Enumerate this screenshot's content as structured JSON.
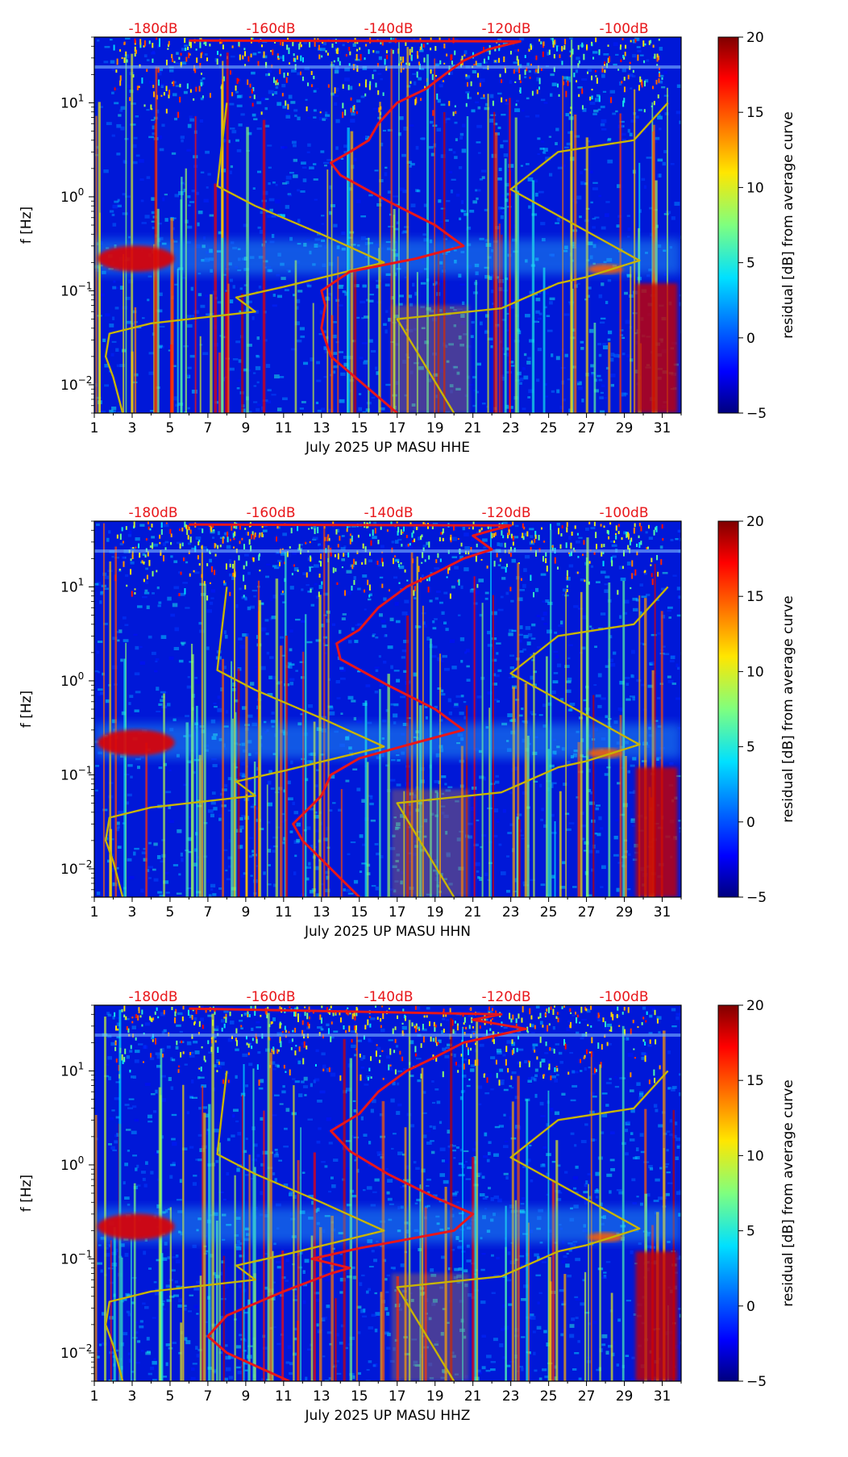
{
  "chart_data": [
    {
      "type": "heatmap",
      "xlabel": "July 2025 UP MASU  HHE",
      "ylabel": "f [Hz]",
      "x_ticks": [
        "1",
        "3",
        "5",
        "7",
        "9",
        "11",
        "13",
        "15",
        "17",
        "19",
        "21",
        "23",
        "25",
        "27",
        "29",
        "31"
      ],
      "x_range": [
        1,
        32
      ],
      "y_scale": "log",
      "y_range": [
        0.005,
        50
      ],
      "y_ticks": [
        {
          "base": "10",
          "exp": "−2"
        },
        {
          "base": "10",
          "exp": "−1"
        },
        {
          "base": "10",
          "exp": "0"
        },
        {
          "base": "10",
          "exp": "1"
        }
      ],
      "top_ticks": [
        "-180dB",
        "-160dB",
        "-140dB",
        "-120dB",
        "-100dB"
      ],
      "colorbar": {
        "label": "residual [dB] from average curve",
        "range": [
          -5,
          20
        ],
        "ticks": [
          "−5",
          "0",
          "5",
          "10",
          "15",
          "20"
        ]
      },
      "curves": [
        {
          "name": "noise-model-low",
          "color": "#c8b400",
          "points": [
            [
              2.5,
              0.005
            ],
            [
              2.0,
              0.012
            ],
            [
              1.6,
              0.02
            ],
            [
              1.8,
              0.035
            ],
            [
              4.0,
              0.045
            ],
            [
              9.5,
              0.06
            ],
            [
              8.5,
              0.085
            ],
            [
              11.0,
              0.11
            ],
            [
              16.3,
              0.2
            ],
            [
              13.0,
              0.4
            ],
            [
              9.5,
              0.8
            ],
            [
              7.5,
              1.3
            ],
            [
              7.7,
              3
            ],
            [
              8.0,
              10
            ]
          ]
        },
        {
          "name": "noise-model-high",
          "color": "#c8b400",
          "points": [
            [
              20.0,
              0.005
            ],
            [
              17.0,
              0.05
            ],
            [
              22.5,
              0.065
            ],
            [
              25.5,
              0.12
            ],
            [
              27.0,
              0.14
            ],
            [
              29.8,
              0.21
            ],
            [
              23.0,
              1.2
            ],
            [
              25.5,
              3
            ],
            [
              29.5,
              4
            ],
            [
              31.3,
              10
            ]
          ]
        },
        {
          "name": "median-psd",
          "color": "#e8161a",
          "points": [
            [
              17.0,
              0.005
            ],
            [
              13.5,
              0.02
            ],
            [
              13.0,
              0.04
            ],
            [
              13.2,
              0.07
            ],
            [
              13.0,
              0.1
            ],
            [
              14.5,
              0.16
            ],
            [
              18.0,
              0.22
            ],
            [
              20.5,
              0.3
            ],
            [
              19.0,
              0.5
            ],
            [
              16.5,
              0.9
            ],
            [
              14.0,
              1.7
            ],
            [
              13.5,
              2.3
            ],
            [
              14.5,
              3
            ],
            [
              15.5,
              4
            ],
            [
              16.0,
              6
            ],
            [
              17.0,
              10
            ],
            [
              18.5,
              14
            ],
            [
              19.5,
              20
            ],
            [
              20.5,
              28
            ],
            [
              21.8,
              37
            ],
            [
              23.5,
              45
            ],
            [
              6.0,
              46
            ]
          ]
        }
      ]
    },
    {
      "type": "heatmap",
      "xlabel": "July 2025 UP MASU  HHN",
      "ylabel": "f [Hz]",
      "x_ticks": [
        "1",
        "3",
        "5",
        "7",
        "9",
        "11",
        "13",
        "15",
        "17",
        "19",
        "21",
        "23",
        "25",
        "27",
        "29",
        "31"
      ],
      "x_range": [
        1,
        32
      ],
      "y_scale": "log",
      "y_range": [
        0.005,
        50
      ],
      "y_ticks": [
        {
          "base": "10",
          "exp": "−2"
        },
        {
          "base": "10",
          "exp": "−1"
        },
        {
          "base": "10",
          "exp": "0"
        },
        {
          "base": "10",
          "exp": "1"
        }
      ],
      "top_ticks": [
        "-180dB",
        "-160dB",
        "-140dB",
        "-120dB",
        "-100dB"
      ],
      "colorbar": {
        "label": "residual [dB] from average curve",
        "range": [
          -5,
          20
        ],
        "ticks": [
          "−5",
          "0",
          "5",
          "10",
          "15",
          "20"
        ]
      },
      "curves": [
        {
          "name": "noise-model-low",
          "color": "#c8b400",
          "points": [
            [
              2.5,
              0.005
            ],
            [
              2.0,
              0.012
            ],
            [
              1.6,
              0.02
            ],
            [
              1.8,
              0.035
            ],
            [
              4.0,
              0.045
            ],
            [
              9.5,
              0.06
            ],
            [
              8.5,
              0.085
            ],
            [
              11.0,
              0.11
            ],
            [
              16.3,
              0.2
            ],
            [
              13.0,
              0.4
            ],
            [
              9.5,
              0.8
            ],
            [
              7.5,
              1.3
            ],
            [
              7.7,
              3
            ],
            [
              8.0,
              10
            ]
          ]
        },
        {
          "name": "noise-model-high",
          "color": "#c8b400",
          "points": [
            [
              20.0,
              0.005
            ],
            [
              17.0,
              0.05
            ],
            [
              22.5,
              0.065
            ],
            [
              25.5,
              0.12
            ],
            [
              27.0,
              0.14
            ],
            [
              29.8,
              0.21
            ],
            [
              23.0,
              1.2
            ],
            [
              25.5,
              3
            ],
            [
              29.5,
              4
            ],
            [
              31.3,
              10
            ]
          ]
        },
        {
          "name": "median-psd",
          "color": "#e8161a",
          "points": [
            [
              15.0,
              0.005
            ],
            [
              12.0,
              0.02
            ],
            [
              11.5,
              0.03
            ],
            [
              13.0,
              0.06
            ],
            [
              13.5,
              0.1
            ],
            [
              15.0,
              0.15
            ],
            [
              18.0,
              0.22
            ],
            [
              20.5,
              0.3
            ],
            [
              19.0,
              0.5
            ],
            [
              16.5,
              0.9
            ],
            [
              14.0,
              1.7
            ],
            [
              13.8,
              2.5
            ],
            [
              15.0,
              3.5
            ],
            [
              16.0,
              6
            ],
            [
              17.5,
              10
            ],
            [
              19.0,
              14
            ],
            [
              20.5,
              20
            ],
            [
              22.0,
              25
            ],
            [
              21.0,
              35
            ],
            [
              22.0,
              40
            ],
            [
              23.0,
              45
            ],
            [
              6.0,
              46
            ]
          ]
        }
      ]
    },
    {
      "type": "heatmap",
      "xlabel": "July 2025 UP MASU  HHZ",
      "ylabel": "f [Hz]",
      "x_ticks": [
        "1",
        "3",
        "5",
        "7",
        "9",
        "11",
        "13",
        "15",
        "17",
        "19",
        "21",
        "23",
        "25",
        "27",
        "29",
        "31"
      ],
      "x_range": [
        1,
        32
      ],
      "y_scale": "log",
      "y_range": [
        0.005,
        50
      ],
      "y_ticks": [
        {
          "base": "10",
          "exp": "−2"
        },
        {
          "base": "10",
          "exp": "−1"
        },
        {
          "base": "10",
          "exp": "0"
        },
        {
          "base": "10",
          "exp": "1"
        }
      ],
      "top_ticks": [
        "-180dB",
        "-160dB",
        "-140dB",
        "-120dB",
        "-100dB"
      ],
      "colorbar": {
        "label": "residual [dB] from average curve",
        "range": [
          -5,
          20
        ],
        "ticks": [
          "−5",
          "0",
          "5",
          "10",
          "15",
          "20"
        ]
      },
      "curves": [
        {
          "name": "noise-model-low",
          "color": "#c8b400",
          "points": [
            [
              2.5,
              0.005
            ],
            [
              2.0,
              0.012
            ],
            [
              1.6,
              0.02
            ],
            [
              1.8,
              0.035
            ],
            [
              4.0,
              0.045
            ],
            [
              9.5,
              0.06
            ],
            [
              8.5,
              0.085
            ],
            [
              11.0,
              0.11
            ],
            [
              16.3,
              0.2
            ],
            [
              13.0,
              0.4
            ],
            [
              9.5,
              0.8
            ],
            [
              7.5,
              1.3
            ],
            [
              7.7,
              3
            ],
            [
              8.0,
              10
            ]
          ]
        },
        {
          "name": "noise-model-high",
          "color": "#c8b400",
          "points": [
            [
              20.0,
              0.005
            ],
            [
              17.0,
              0.05
            ],
            [
              22.5,
              0.065
            ],
            [
              25.5,
              0.12
            ],
            [
              27.0,
              0.14
            ],
            [
              29.8,
              0.21
            ],
            [
              23.0,
              1.2
            ],
            [
              25.5,
              3
            ],
            [
              29.5,
              4
            ],
            [
              31.3,
              10
            ]
          ]
        },
        {
          "name": "median-psd",
          "color": "#e8161a",
          "points": [
            [
              11.3,
              0.005
            ],
            [
              8.0,
              0.01
            ],
            [
              7.0,
              0.015
            ],
            [
              8.0,
              0.025
            ],
            [
              11.0,
              0.045
            ],
            [
              13.5,
              0.07
            ],
            [
              14.5,
              0.08
            ],
            [
              12.5,
              0.1
            ],
            [
              15.0,
              0.13
            ],
            [
              20.0,
              0.2
            ],
            [
              21.0,
              0.3
            ],
            [
              19.0,
              0.45
            ],
            [
              16.5,
              0.8
            ],
            [
              14.5,
              1.4
            ],
            [
              13.5,
              2.3
            ],
            [
              15.0,
              3.5
            ],
            [
              16.0,
              6
            ],
            [
              17.5,
              10
            ],
            [
              19.0,
              14
            ],
            [
              20.5,
              20
            ],
            [
              23.8,
              28
            ],
            [
              21.0,
              35
            ],
            [
              22.5,
              40
            ],
            [
              6.0,
              46
            ]
          ]
        }
      ]
    }
  ]
}
